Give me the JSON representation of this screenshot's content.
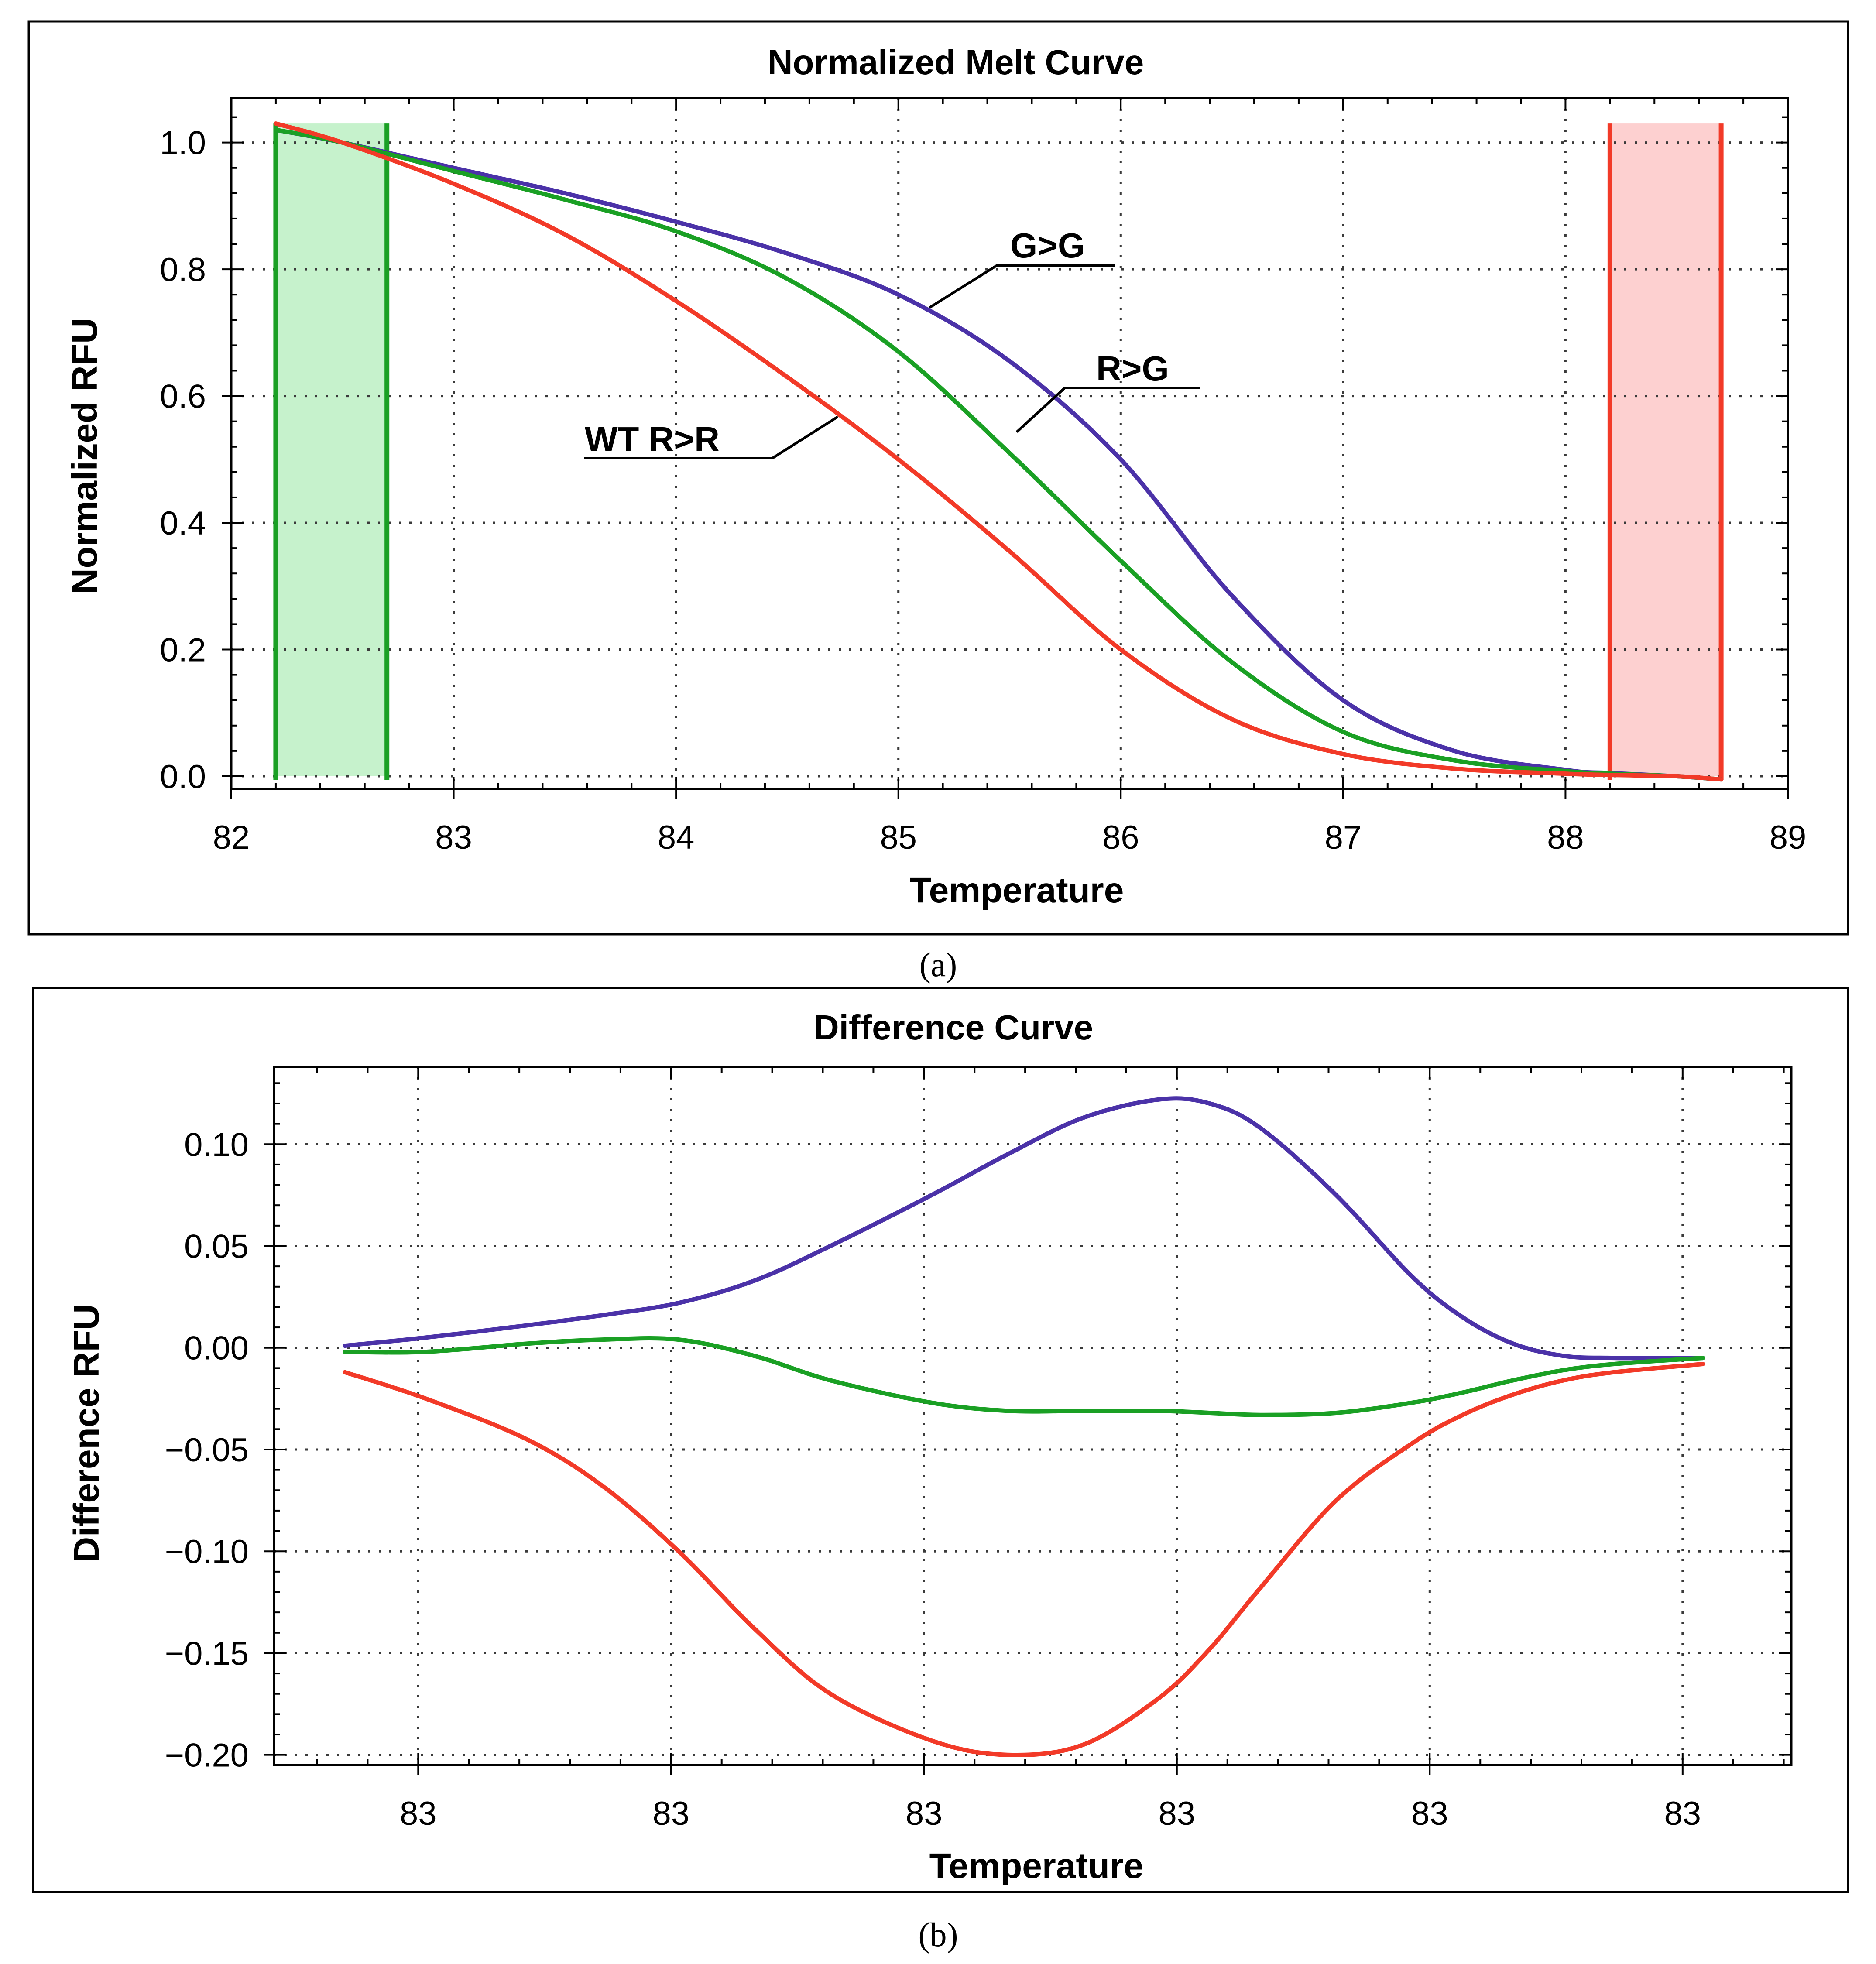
{
  "figure": {
    "caption_a": "(a)",
    "caption_b": "(b)"
  },
  "chart_data": [
    {
      "type": "line",
      "title": "Normalized Melt Curve",
      "xlabel": "Temperature",
      "ylabel": "Normalized RFU",
      "xlim": [
        82,
        89
      ],
      "ylim": [
        -0.02,
        1.07
      ],
      "xticks": [
        82,
        83,
        84,
        85,
        86,
        87,
        88,
        89
      ],
      "xtick_labels": [
        "82",
        "83",
        "84",
        "85",
        "86",
        "87",
        "88",
        "89"
      ],
      "yticks": [
        0.0,
        0.2,
        0.4,
        0.6,
        0.8,
        1.0
      ],
      "ytick_labels": [
        "0.0",
        "0.2",
        "0.4",
        "0.6",
        "0.8",
        "1.0"
      ],
      "grid": true,
      "regions": [
        {
          "name": "pre-melt normalization region",
          "x": [
            82.2,
            82.7
          ],
          "y": [
            0.0,
            1.03
          ],
          "color": "#1aa024",
          "fill": "#c6f2cc"
        },
        {
          "name": "post-melt normalization region",
          "x": [
            88.2,
            88.7
          ],
          "y": [
            0.0,
            1.03
          ],
          "color": "#f23a28",
          "fill": "#fdd0d0"
        }
      ],
      "series": [
        {
          "name": "G>G",
          "color": "#4b32a8",
          "x": [
            82.2,
            82.5,
            83.0,
            83.5,
            84.0,
            84.5,
            85.0,
            85.5,
            86.0,
            86.5,
            87.0,
            87.5,
            88.0,
            88.2,
            88.5,
            88.7
          ],
          "y": [
            1.02,
            1.0,
            0.96,
            0.92,
            0.875,
            0.825,
            0.76,
            0.655,
            0.5,
            0.285,
            0.12,
            0.04,
            0.01,
            0.005,
            0.0,
            -0.005
          ]
        },
        {
          "name": "R>G",
          "color": "#1aa024",
          "x": [
            82.2,
            82.5,
            83.0,
            83.5,
            84.0,
            84.5,
            85.0,
            85.5,
            86.0,
            86.5,
            87.0,
            87.5,
            88.0,
            88.2,
            88.5,
            88.7
          ],
          "y": [
            1.02,
            1.0,
            0.955,
            0.91,
            0.86,
            0.785,
            0.67,
            0.51,
            0.34,
            0.18,
            0.07,
            0.025,
            0.008,
            0.004,
            0.0,
            -0.005
          ]
        },
        {
          "name": "WT R>R",
          "color": "#f23a28",
          "x": [
            82.2,
            82.5,
            83.0,
            83.5,
            84.0,
            84.5,
            85.0,
            85.5,
            86.0,
            86.5,
            87.0,
            87.5,
            88.0,
            88.2,
            88.5,
            88.7
          ],
          "y": [
            1.03,
            1.0,
            0.935,
            0.855,
            0.75,
            0.63,
            0.5,
            0.355,
            0.2,
            0.09,
            0.035,
            0.012,
            0.004,
            0.002,
            0.0,
            -0.005
          ]
        }
      ],
      "annotations": [
        {
          "text": "G>G",
          "series": "G>G",
          "point": [
            85.1,
            0.755
          ]
        },
        {
          "text": "R>G",
          "series": "R>G",
          "point": [
            85.5,
            0.555
          ]
        },
        {
          "text": "WT R>R",
          "series": "WT R>R",
          "point": [
            84.7,
            0.585
          ]
        }
      ]
    },
    {
      "type": "line",
      "title": "Difference Curve",
      "xlabel": "Temperature",
      "ylabel": "Difference RFU",
      "xlim": [
        0,
        6
      ],
      "ylim": [
        -0.205,
        0.138
      ],
      "xtick_positions": [
        0.57,
        1.57,
        2.57,
        3.57,
        4.57,
        5.57
      ],
      "xtick_labels": [
        "83",
        "83",
        "83",
        "83",
        "83",
        "83"
      ],
      "yticks": [
        0.1,
        0.05,
        0.0,
        -0.05,
        -0.1,
        -0.15,
        -0.2
      ],
      "ytick_labels": [
        "0.10",
        "0.05",
        "0.00",
        "−0.05",
        "−0.10",
        "−0.15",
        "−0.20"
      ],
      "grid": true,
      "series": [
        {
          "name": "G>G",
          "color": "#4b32a8",
          "x": [
            0.28,
            0.6,
            1.0,
            1.3,
            1.6,
            1.9,
            2.2,
            2.6,
            2.9,
            3.2,
            3.5,
            3.7,
            3.9,
            4.2,
            4.5,
            4.7,
            4.9,
            5.1,
            5.3,
            5.65
          ],
          "y": [
            0.001,
            0.005,
            0.011,
            0.016,
            0.022,
            0.033,
            0.05,
            0.075,
            0.095,
            0.113,
            0.122,
            0.12,
            0.108,
            0.075,
            0.035,
            0.015,
            0.002,
            -0.004,
            -0.005,
            -0.005
          ]
        },
        {
          "name": "R>G",
          "color": "#1aa024",
          "x": [
            0.28,
            0.6,
            1.0,
            1.3,
            1.6,
            1.9,
            2.2,
            2.6,
            2.9,
            3.2,
            3.5,
            3.7,
            3.9,
            4.2,
            4.5,
            4.7,
            4.9,
            5.1,
            5.3,
            5.65
          ],
          "y": [
            -0.002,
            -0.002,
            0.002,
            0.004,
            0.004,
            -0.004,
            -0.016,
            -0.027,
            -0.031,
            -0.031,
            -0.031,
            -0.032,
            -0.033,
            -0.032,
            -0.027,
            -0.022,
            -0.016,
            -0.011,
            -0.008,
            -0.005
          ]
        },
        {
          "name": "WT R>R",
          "color": "#f23a28",
          "x": [
            0.28,
            0.6,
            1.0,
            1.3,
            1.6,
            1.9,
            2.2,
            2.6,
            2.9,
            3.2,
            3.5,
            3.7,
            3.9,
            4.2,
            4.5,
            4.7,
            4.9,
            5.1,
            5.3,
            5.65
          ],
          "y": [
            -0.012,
            -0.025,
            -0.045,
            -0.068,
            -0.1,
            -0.138,
            -0.17,
            -0.193,
            -0.2,
            -0.195,
            -0.172,
            -0.148,
            -0.118,
            -0.075,
            -0.047,
            -0.033,
            -0.023,
            -0.016,
            -0.012,
            -0.008
          ]
        }
      ]
    }
  ]
}
